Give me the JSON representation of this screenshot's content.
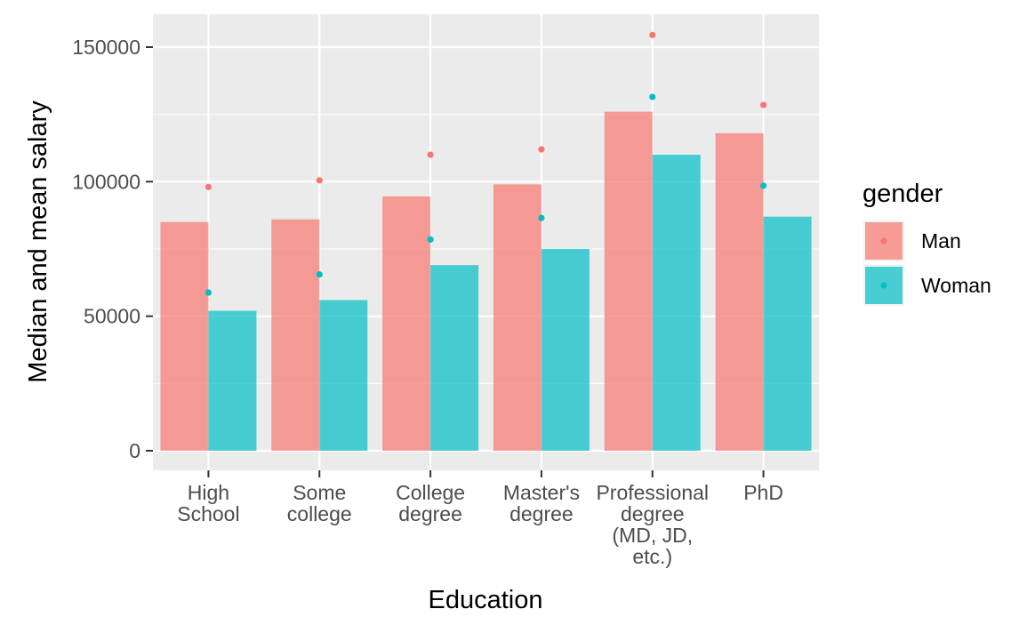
{
  "chart_data": {
    "type": "bar",
    "xlabel": "Education",
    "ylabel": "Median and mean salary",
    "ylim": [
      -5000,
      163000
    ],
    "y_ticks": [
      0,
      50000,
      100000,
      150000
    ],
    "y_tick_labels": [
      "0",
      "50000",
      "100000",
      "150000"
    ],
    "grid": true,
    "legend_placement": "right",
    "categories": [
      [
        "High",
        "School"
      ],
      [
        "Some",
        "college"
      ],
      [
        "College",
        "degree"
      ],
      [
        "Master's",
        "degree"
      ],
      [
        "Professional",
        "degree",
        "(MD, JD,",
        "etc.)"
      ],
      [
        "PhD"
      ]
    ],
    "legend": {
      "title": "gender",
      "items": [
        "Man",
        "Woman"
      ]
    },
    "series": [
      {
        "name": "Man",
        "color": "#F8766D",
        "median": [
          85000,
          86000,
          94500,
          99000,
          126000,
          118000
        ],
        "mean": [
          98000,
          100500,
          110000,
          112000,
          154500,
          128500
        ]
      },
      {
        "name": "Woman",
        "color": "#00BFC4",
        "median": [
          52000,
          56000,
          69000,
          75000,
          110000,
          87000
        ],
        "mean": [
          58800,
          65500,
          78500,
          86500,
          131500,
          98500
        ]
      }
    ]
  }
}
